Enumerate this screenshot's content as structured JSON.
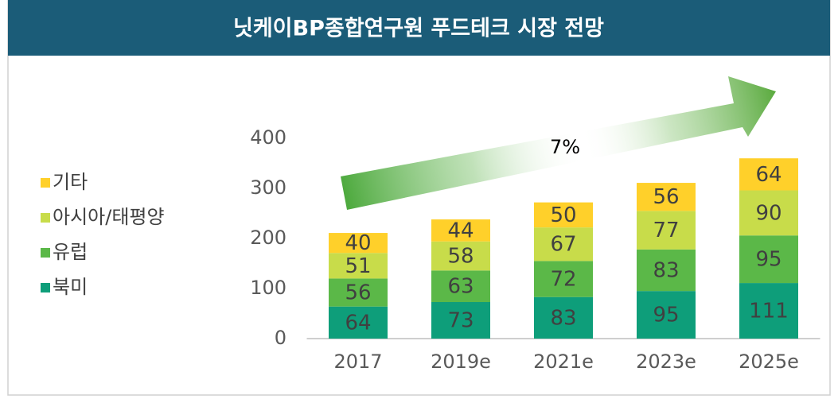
{
  "chart_data": {
    "type": "stacked_bar",
    "title": "닛케이BP종합연구원 푸드테크 시장 전망",
    "annotation": "7%",
    "categories": [
      "2017",
      "2019e",
      "2021e",
      "2023e",
      "2025e"
    ],
    "series": [
      {
        "name": "북미",
        "color": "#0e9e7a",
        "values": [
          64,
          73,
          83,
          95,
          111
        ]
      },
      {
        "name": "유럽",
        "color": "#5bb848",
        "values": [
          56,
          63,
          72,
          83,
          95
        ]
      },
      {
        "name": "아시아/태평양",
        "color": "#c8dc4a",
        "values": [
          51,
          58,
          67,
          77,
          90
        ]
      },
      {
        "name": "기타",
        "color": "#ffd02a",
        "values": [
          40,
          44,
          50,
          56,
          64
        ]
      }
    ],
    "ylim": [
      0,
      400
    ],
    "yticks": [
      0,
      100,
      200,
      300,
      400
    ],
    "legend": "left"
  }
}
